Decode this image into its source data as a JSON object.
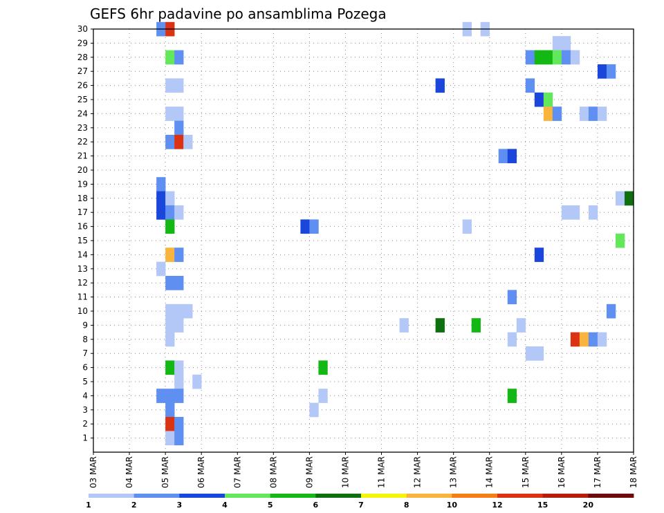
{
  "chart_data": {
    "type": "heatmap",
    "title": "GEFS 6hr padavine po ansamblima Pozega",
    "xlabel": "",
    "ylabel": "",
    "x_tick_labels": [
      "03 MAR",
      "04 MAR",
      "05 MAR",
      "06 MAR",
      "07 MAR",
      "08 MAR",
      "09 MAR",
      "10 MAR",
      "11 MAR",
      "12 MAR",
      "13 MAR",
      "14 MAR",
      "15 MAR",
      "16 MAR",
      "17 MAR",
      "18 MAR"
    ],
    "y_tick_labels": [
      "1",
      "2",
      "3",
      "4",
      "5",
      "6",
      "7",
      "8",
      "9",
      "10",
      "11",
      "12",
      "13",
      "14",
      "15",
      "16",
      "17",
      "18",
      "19",
      "20",
      "21",
      "22",
      "23",
      "24",
      "25",
      "26",
      "27",
      "28",
      "29",
      "30"
    ],
    "xlim_steps": [
      0,
      60
    ],
    "ylim_members": [
      0,
      30
    ],
    "grid": true,
    "colorbar": {
      "labels": [
        "1",
        "2",
        "3",
        "4",
        "5",
        "6",
        "7",
        "8",
        "10",
        "12",
        "15",
        "20"
      ],
      "colors": [
        "#b4c8f8",
        "#5f8ff0",
        "#1a46dc",
        "#62e85a",
        "#14b814",
        "#0e6f0e",
        "#f5f50a",
        "#f8b43c",
        "#f57d14",
        "#dc3214",
        "#b41e0a",
        "#6e0a0a"
      ]
    },
    "cells": [
      {
        "member": 30,
        "steps": [
          {
            "s": 7.5,
            "c": 2
          },
          {
            "s": 8.5,
            "c": 10
          },
          {
            "s": 41.5,
            "c": 1
          },
          {
            "s": 43.5,
            "c": 1
          }
        ]
      },
      {
        "member": 29,
        "steps": [
          {
            "s": 51.5,
            "c": 1
          },
          {
            "s": 52.5,
            "c": 1
          }
        ]
      },
      {
        "member": 28,
        "steps": [
          {
            "s": 8.5,
            "c": 4
          },
          {
            "s": 9.5,
            "c": 2
          },
          {
            "s": 48.5,
            "c": 2
          },
          {
            "s": 49.5,
            "c": 5
          },
          {
            "s": 50.5,
            "c": 5
          },
          {
            "s": 51.5,
            "c": 4
          },
          {
            "s": 52.5,
            "c": 2
          },
          {
            "s": 53.5,
            "c": 1
          }
        ]
      },
      {
        "member": 27,
        "steps": [
          {
            "s": 56.5,
            "c": 3
          },
          {
            "s": 57.5,
            "c": 2
          }
        ]
      },
      {
        "member": 26,
        "steps": [
          {
            "s": 8.5,
            "c": 1
          },
          {
            "s": 9.5,
            "c": 1
          },
          {
            "s": 38.5,
            "c": 3
          },
          {
            "s": 48.5,
            "c": 2
          }
        ]
      },
      {
        "member": 25,
        "steps": [
          {
            "s": 49.5,
            "c": 3
          },
          {
            "s": 50.5,
            "c": 4
          }
        ]
      },
      {
        "member": 24,
        "steps": [
          {
            "s": 8.5,
            "c": 1
          },
          {
            "s": 9.5,
            "c": 1
          },
          {
            "s": 50.5,
            "c": 8
          },
          {
            "s": 51.5,
            "c": 2
          },
          {
            "s": 54.5,
            "c": 1
          },
          {
            "s": 55.5,
            "c": 2
          },
          {
            "s": 56.5,
            "c": 1
          }
        ]
      },
      {
        "member": 23,
        "steps": [
          {
            "s": 9.5,
            "c": 2
          }
        ]
      },
      {
        "member": 22,
        "steps": [
          {
            "s": 8.5,
            "c": 2
          },
          {
            "s": 9.5,
            "c": 10
          },
          {
            "s": 10.5,
            "c": 1
          }
        ]
      },
      {
        "member": 21,
        "steps": [
          {
            "s": 45.5,
            "c": 2
          },
          {
            "s": 46.5,
            "c": 3
          }
        ]
      },
      {
        "member": 19,
        "steps": [
          {
            "s": 7.5,
            "c": 2
          }
        ]
      },
      {
        "member": 18,
        "steps": [
          {
            "s": 7.5,
            "c": 3
          },
          {
            "s": 8.5,
            "c": 1
          },
          {
            "s": 58.5,
            "c": 1
          },
          {
            "s": 59.5,
            "c": 6
          }
        ]
      },
      {
        "member": 17,
        "steps": [
          {
            "s": 7.5,
            "c": 3
          },
          {
            "s": 8.5,
            "c": 2
          },
          {
            "s": 9.5,
            "c": 1
          },
          {
            "s": 52.5,
            "c": 1
          },
          {
            "s": 53.5,
            "c": 1
          },
          {
            "s": 55.5,
            "c": 1
          }
        ]
      },
      {
        "member": 16,
        "steps": [
          {
            "s": 8.5,
            "c": 5
          },
          {
            "s": 23.5,
            "c": 3
          },
          {
            "s": 24.5,
            "c": 2
          },
          {
            "s": 41.5,
            "c": 1
          }
        ]
      },
      {
        "member": 15,
        "steps": [
          {
            "s": 58.5,
            "c": 4
          }
        ]
      },
      {
        "member": 14,
        "steps": [
          {
            "s": 8.5,
            "c": 8
          },
          {
            "s": 9.5,
            "c": 2
          },
          {
            "s": 49.5,
            "c": 3
          }
        ]
      },
      {
        "member": 13,
        "steps": [
          {
            "s": 7.5,
            "c": 1
          }
        ]
      },
      {
        "member": 12,
        "steps": [
          {
            "s": 8.5,
            "c": 2
          },
          {
            "s": 9.5,
            "c": 2
          }
        ]
      },
      {
        "member": 11,
        "steps": [
          {
            "s": 46.5,
            "c": 2
          }
        ]
      },
      {
        "member": 10,
        "steps": [
          {
            "s": 8.5,
            "c": 1
          },
          {
            "s": 9.5,
            "c": 1
          },
          {
            "s": 10.5,
            "c": 1
          },
          {
            "s": 57.5,
            "c": 2
          }
        ]
      },
      {
        "member": 9,
        "steps": [
          {
            "s": 8.5,
            "c": 1
          },
          {
            "s": 9.5,
            "c": 1
          },
          {
            "s": 34.5,
            "c": 1
          },
          {
            "s": 38.5,
            "c": 6
          },
          {
            "s": 42.5,
            "c": 5
          },
          {
            "s": 47.5,
            "c": 1
          }
        ]
      },
      {
        "member": 8,
        "steps": [
          {
            "s": 8.5,
            "c": 1
          },
          {
            "s": 46.5,
            "c": 1
          },
          {
            "s": 53.5,
            "c": 10
          },
          {
            "s": 54.5,
            "c": 8
          },
          {
            "s": 55.5,
            "c": 2
          },
          {
            "s": 56.5,
            "c": 1
          }
        ]
      },
      {
        "member": 7,
        "steps": [
          {
            "s": 48.5,
            "c": 1
          },
          {
            "s": 49.5,
            "c": 1
          }
        ]
      },
      {
        "member": 6,
        "steps": [
          {
            "s": 8.5,
            "c": 5
          },
          {
            "s": 9.5,
            "c": 1
          },
          {
            "s": 25.5,
            "c": 5
          }
        ]
      },
      {
        "member": 5,
        "steps": [
          {
            "s": 9.5,
            "c": 1
          },
          {
            "s": 11.5,
            "c": 1
          }
        ]
      },
      {
        "member": 4,
        "steps": [
          {
            "s": 7.5,
            "c": 2
          },
          {
            "s": 8.5,
            "c": 2
          },
          {
            "s": 9.5,
            "c": 2
          },
          {
            "s": 25.5,
            "c": 1
          },
          {
            "s": 46.5,
            "c": 5
          }
        ]
      },
      {
        "member": 3,
        "steps": [
          {
            "s": 8.5,
            "c": 2
          },
          {
            "s": 24.5,
            "c": 1
          }
        ]
      },
      {
        "member": 2,
        "steps": [
          {
            "s": 8.5,
            "c": 10
          },
          {
            "s": 9.5,
            "c": 2
          }
        ]
      },
      {
        "member": 1,
        "steps": [
          {
            "s": 8.5,
            "c": 1
          },
          {
            "s": 9.5,
            "c": 2
          }
        ]
      }
    ]
  }
}
